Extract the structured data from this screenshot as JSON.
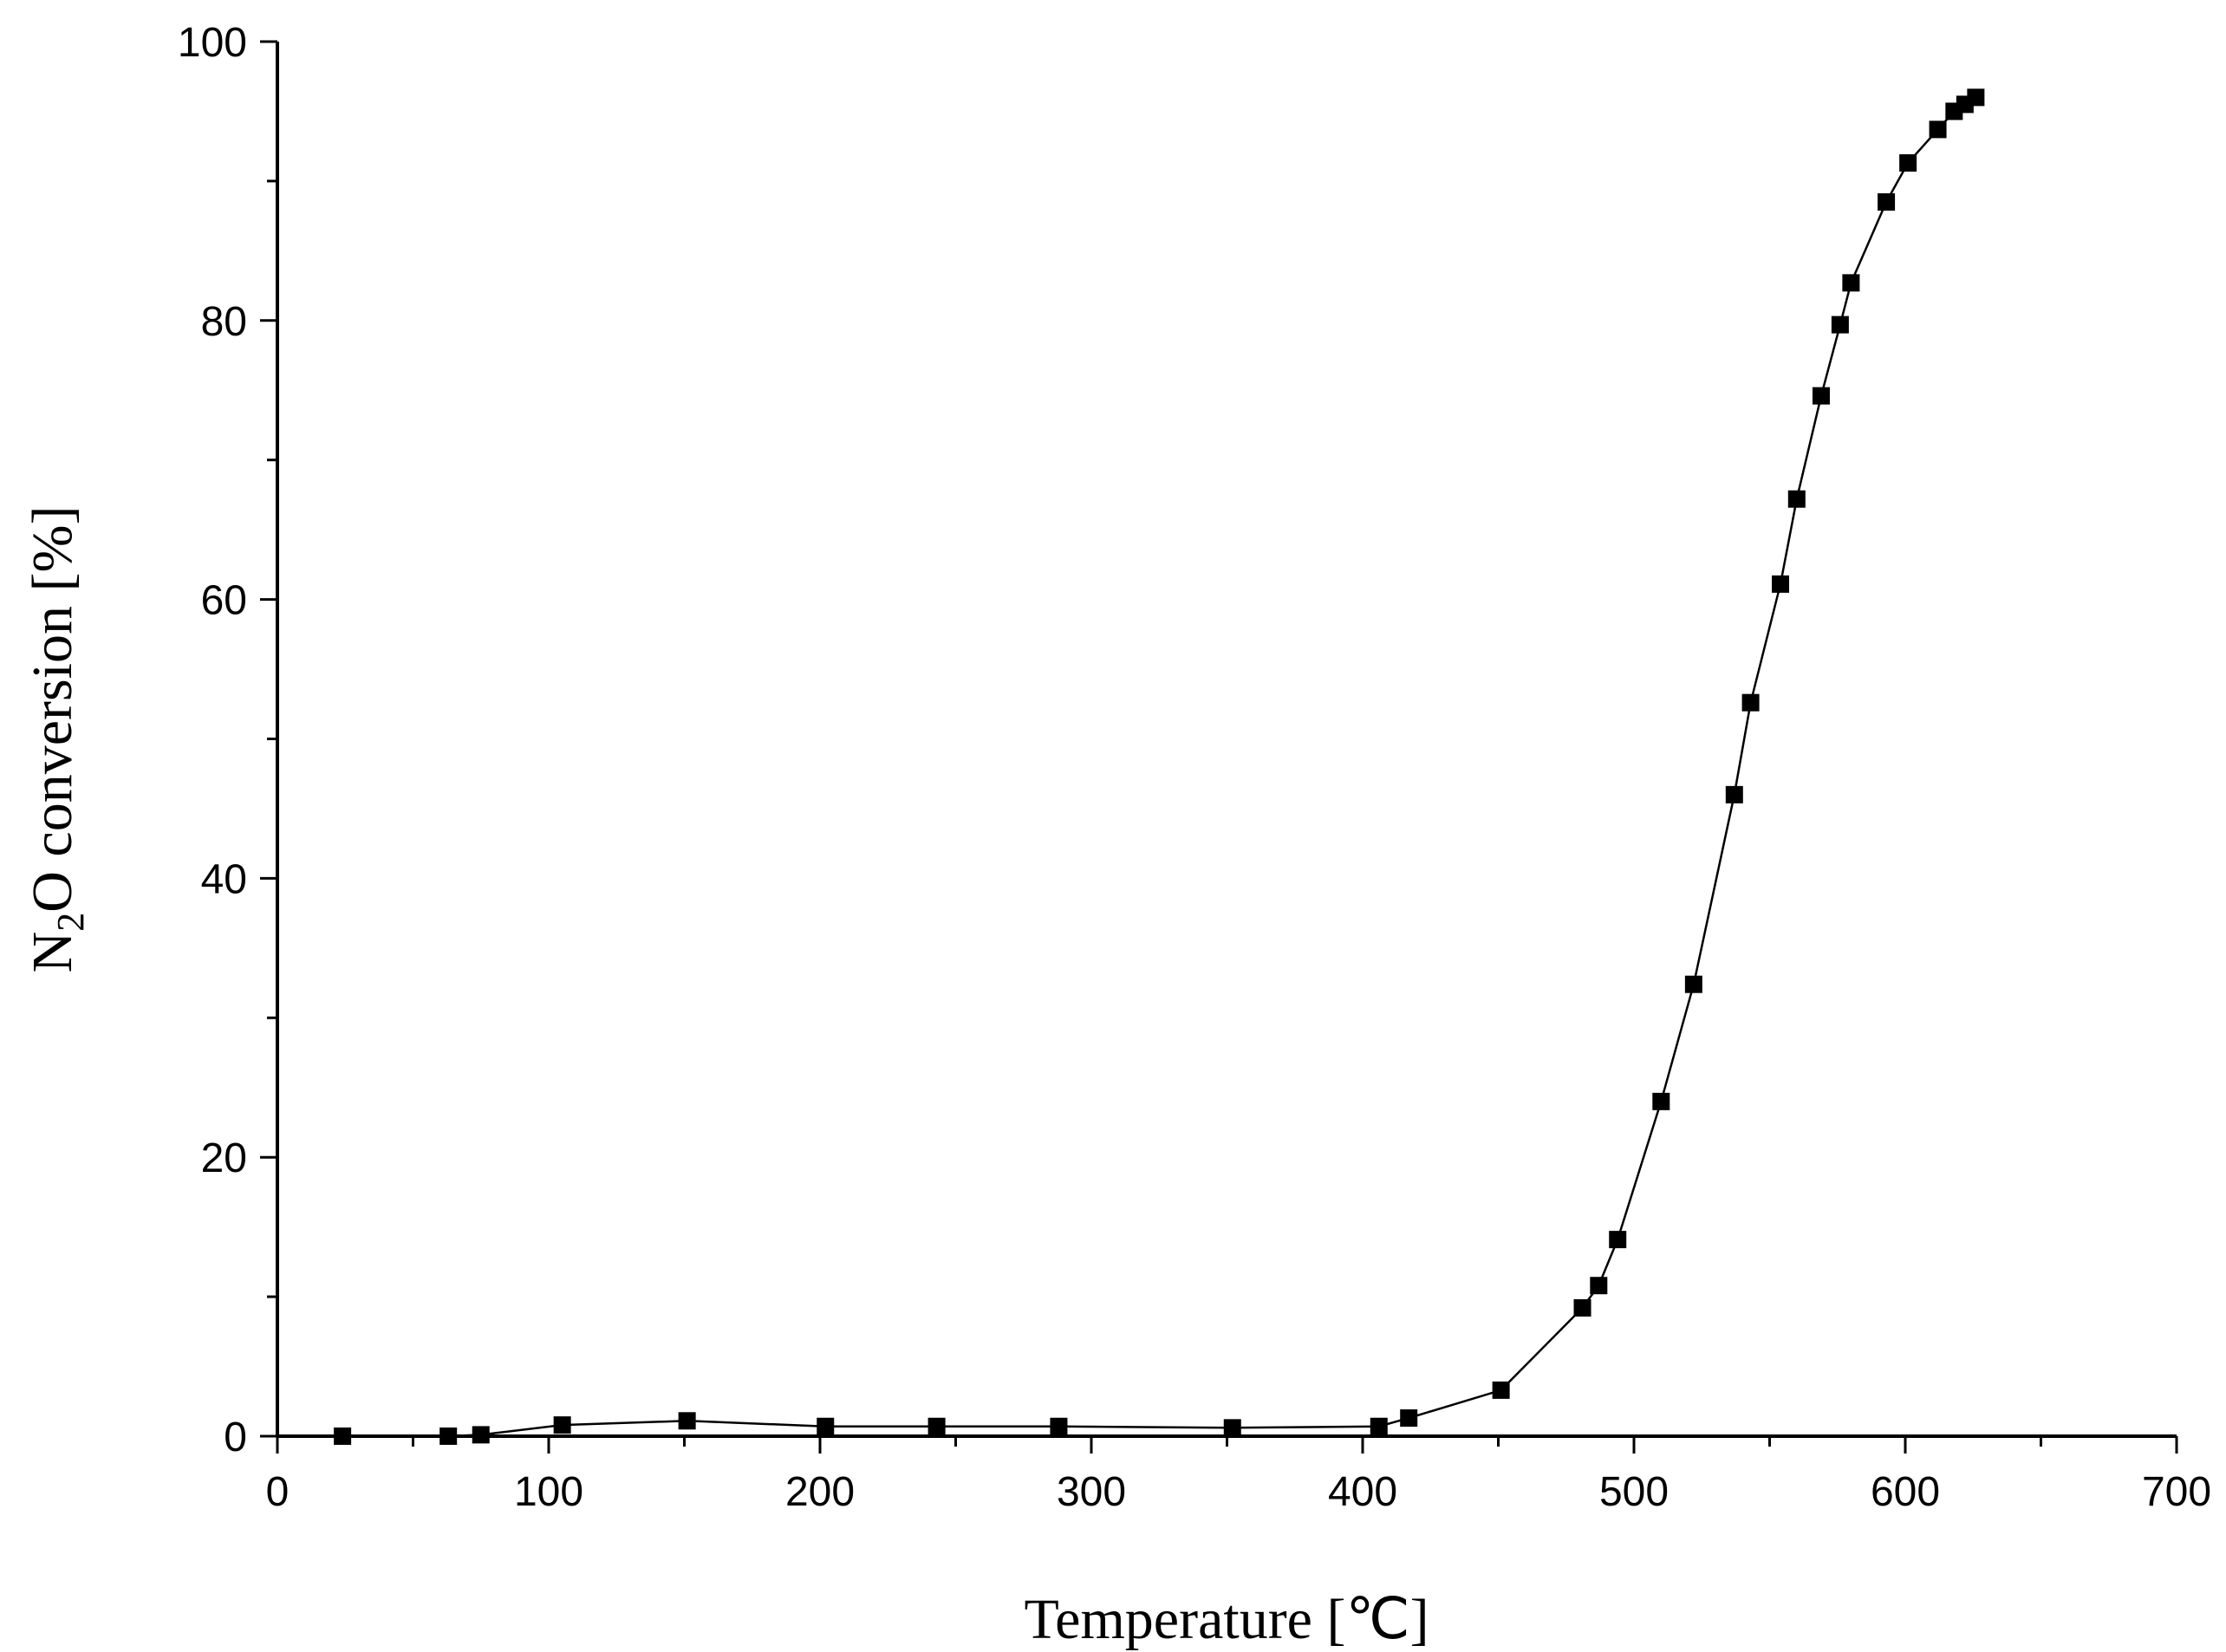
{
  "chart_data": {
    "type": "line",
    "title": "",
    "xlabel": "Temperature [℃]",
    "ylabel": {
      "prefix": "N",
      "subscript": "2",
      "suffix": "O conversion [%]"
    },
    "xlim": [
      0,
      700
    ],
    "ylim": [
      0,
      100
    ],
    "x_major_ticks": [
      0,
      100,
      200,
      300,
      400,
      500,
      600,
      700
    ],
    "x_minor_ticks": [
      50,
      150,
      250,
      350,
      450,
      550,
      650
    ],
    "y_major_ticks": [
      0,
      20,
      40,
      60,
      80,
      100
    ],
    "y_minor_ticks": [
      10,
      30,
      50,
      70,
      90
    ],
    "x_tick_labels": [
      "0",
      "100",
      "200",
      "300",
      "400",
      "500",
      "600",
      "700"
    ],
    "y_tick_labels": [
      "0",
      "20",
      "40",
      "60",
      "80",
      "100"
    ],
    "grid": false,
    "legend": "none",
    "marker": "square",
    "color": "#000000",
    "series": [
      {
        "x": [
          24,
          63,
          75,
          105,
          151,
          202,
          243,
          288,
          352,
          406,
          417,
          451,
          481,
          487,
          494,
          510,
          522,
          537,
          543,
          554,
          560,
          569,
          576,
          580,
          593,
          601,
          612,
          618,
          622,
          626
        ],
        "y": [
          0.0,
          0.0,
          0.1,
          0.8,
          1.1,
          0.7,
          0.7,
          0.7,
          0.6,
          0.7,
          1.3,
          3.3,
          9.2,
          10.8,
          14.1,
          24.0,
          32.4,
          46.0,
          52.6,
          61.1,
          67.2,
          74.6,
          79.7,
          82.7,
          88.5,
          91.3,
          93.7,
          95.0,
          95.5,
          96.0
        ]
      }
    ]
  }
}
